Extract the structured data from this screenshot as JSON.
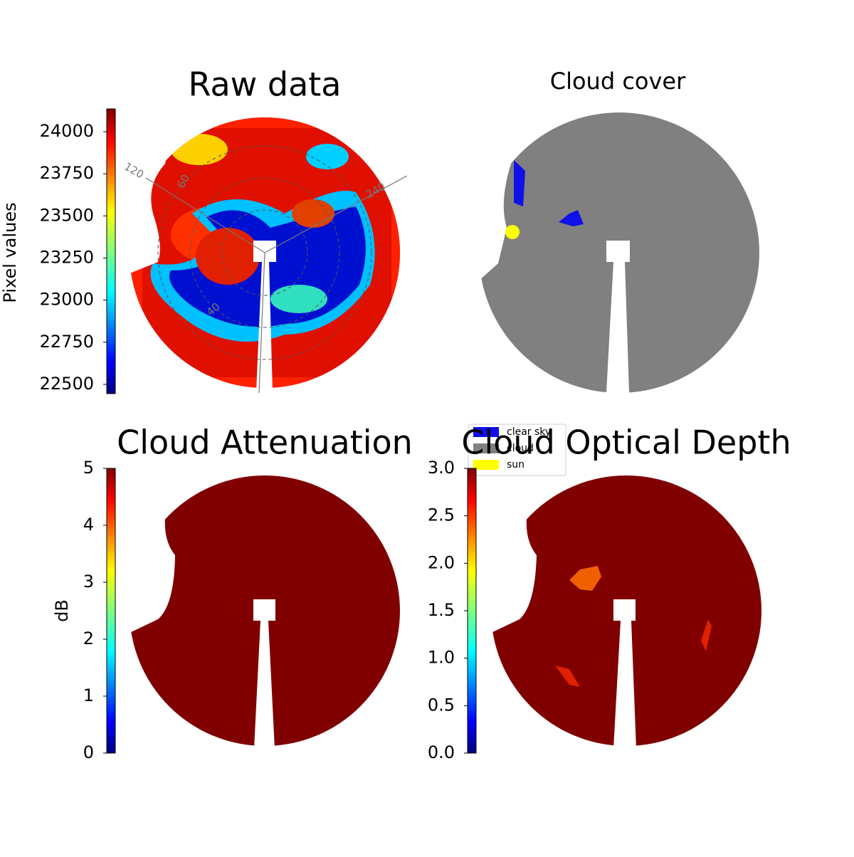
{
  "panels": [
    {
      "title": "Raw data",
      "colorbar": {
        "label": "Pixel values",
        "lim": [
          22445,
          24135
        ],
        "ticks": [
          22500,
          22750,
          23000,
          23250,
          23500,
          23750,
          24000
        ]
      }
    },
    {
      "title": "Cloud cover"
    },
    {
      "title": "Cloud Attenuation",
      "colorbar": {
        "label": "dB",
        "lim": [
          0,
          5
        ],
        "ticks": [
          0,
          1,
          2,
          3,
          4,
          5
        ]
      }
    },
    {
      "title": "Cloud Optical Depth",
      "colorbar": {
        "lim": [
          0,
          3
        ],
        "ticks": [
          {
            "value": 0,
            "label": "0.0"
          },
          0.5,
          {
            "value": 1,
            "label": "1.0"
          },
          1.5,
          {
            "value": 2,
            "label": "2.0"
          },
          2.5,
          {
            "value": 3,
            "label": "3.0"
          }
        ]
      }
    }
  ],
  "legend": {
    "entries": [
      {
        "label": "clear sky",
        "color": "#1010e8"
      },
      {
        "label": "cloud",
        "color": "#808080"
      },
      {
        "label": "sun",
        "color": "#ffff00"
      }
    ]
  },
  "polar_labels": [
    "120",
    "60",
    "240",
    "40"
  ]
}
